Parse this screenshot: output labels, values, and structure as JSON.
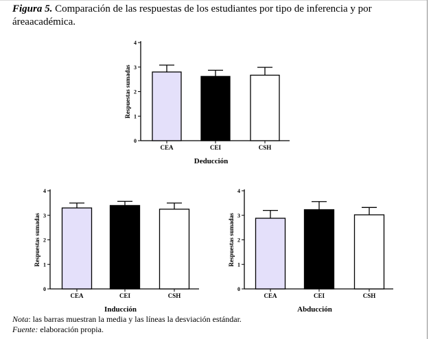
{
  "caption": {
    "label": "Figura 5.",
    "text": "Comparación de las respuestas de los estudiantes por tipo de inferencia y por áreaacadémica."
  },
  "notes": {
    "nota_label": "Nota",
    "nota_text": ": las barras muestran la media y las líneas la desviación estándar.",
    "fuente_label": "Fuente:",
    "fuente_text": " elaboración propia."
  },
  "colors": {
    "CEA": "#e4e0fa",
    "CEI": "#000000",
    "CSH": "#ffffff"
  },
  "chart_data": [
    {
      "type": "bar",
      "title": "",
      "xlabel": "Deducción",
      "ylabel": "Respuestas sumadas",
      "ylim": [
        0,
        4
      ],
      "yticks": [
        "0",
        "1",
        "2",
        "3",
        "4"
      ],
      "categories": [
        "CEA",
        "CEI",
        "CSH"
      ],
      "values": [
        2.8,
        2.62,
        2.67
      ],
      "errors": [
        0.28,
        0.25,
        0.32
      ],
      "grid": false
    },
    {
      "type": "bar",
      "title": "",
      "xlabel": "Inducción",
      "ylabel": "Respuestas sumadas",
      "ylim": [
        0,
        4
      ],
      "yticks": [
        "0",
        "1",
        "2",
        "3",
        "4"
      ],
      "categories": [
        "CEA",
        "CEI",
        "CSH"
      ],
      "values": [
        3.3,
        3.4,
        3.25
      ],
      "errors": [
        0.2,
        0.17,
        0.25
      ],
      "grid": false
    },
    {
      "type": "bar",
      "title": "",
      "xlabel": "Abducción",
      "ylabel": "Respuestas sumadas",
      "ylim": [
        0,
        4
      ],
      "yticks": [
        "0",
        "1",
        "2",
        "3",
        "4"
      ],
      "categories": [
        "CEA",
        "CEI",
        "CSH"
      ],
      "values": [
        2.88,
        3.23,
        3.02
      ],
      "errors": [
        0.32,
        0.33,
        0.3
      ],
      "grid": false
    }
  ]
}
